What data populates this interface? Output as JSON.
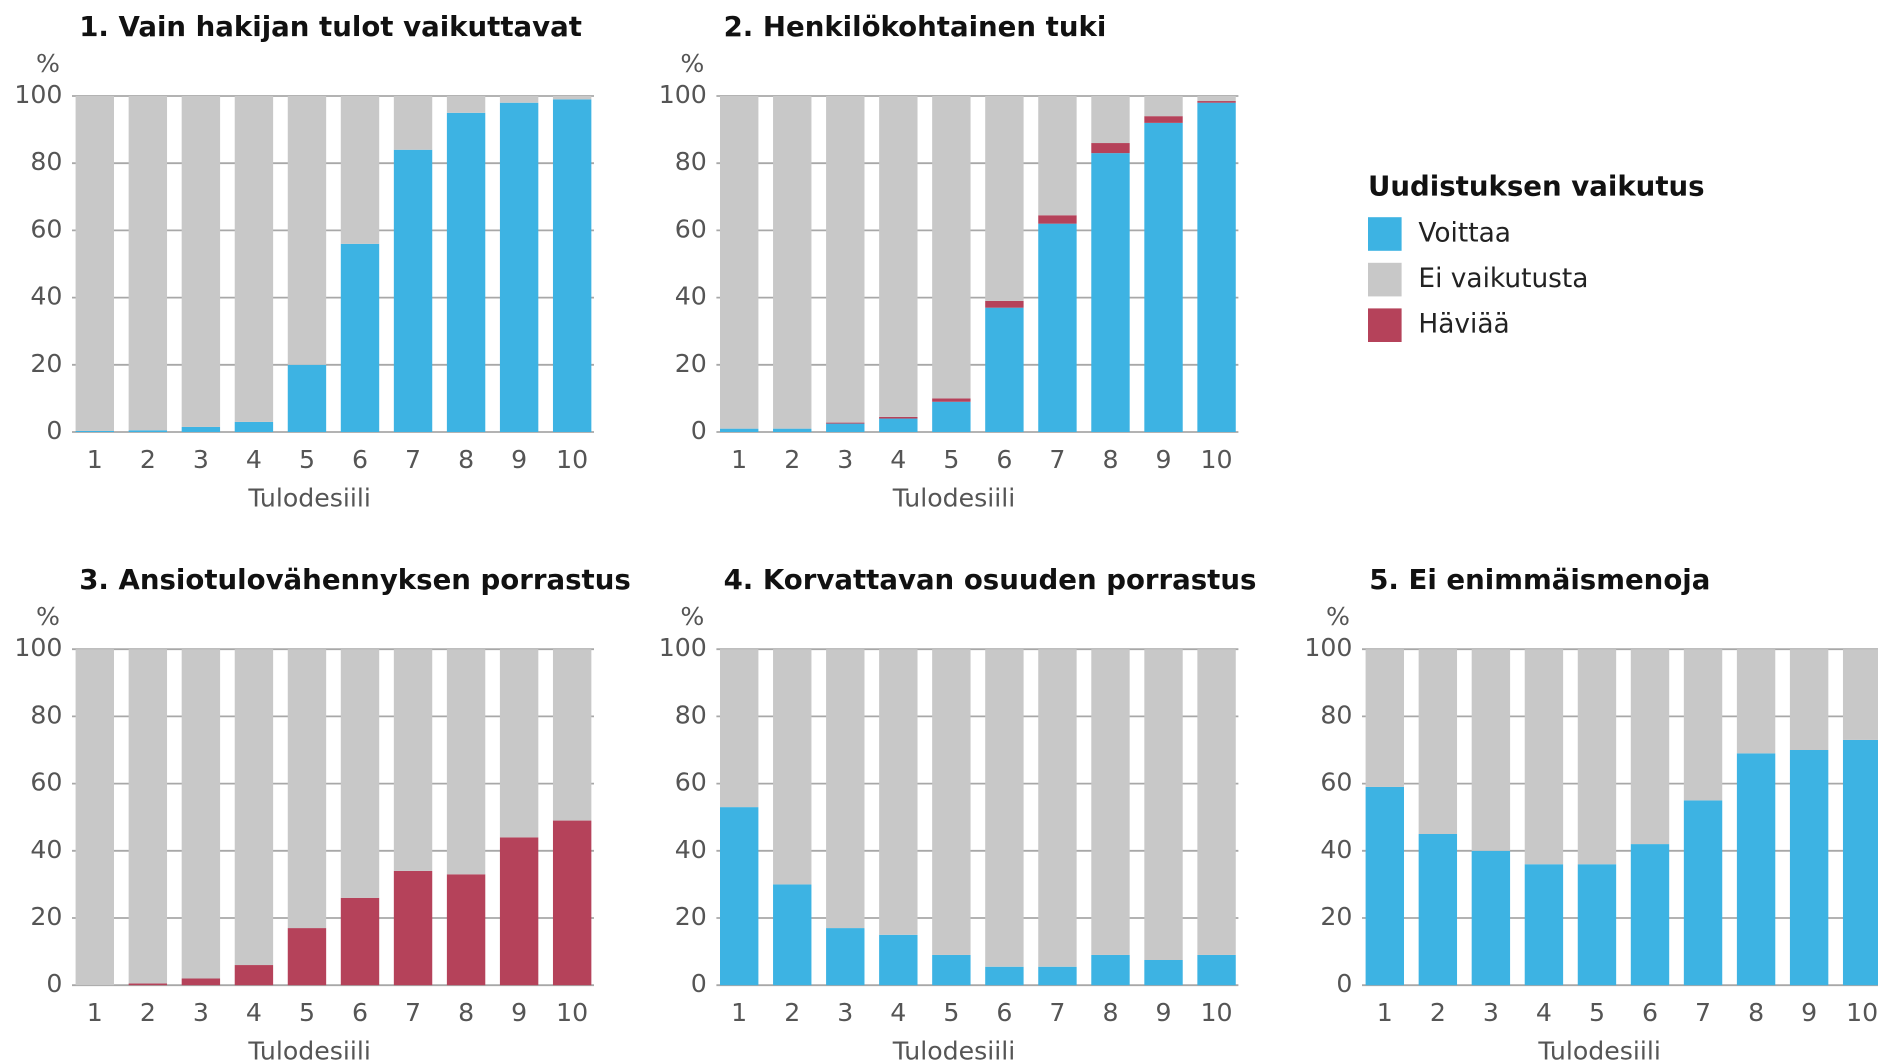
{
  "chart_data": [
    {
      "type": "stacked_bar",
      "title": "1. Vain hakijan tulot vaikuttavat",
      "y_unit": "%",
      "x_label": "Tulodesiili",
      "legend_title": "Uudistuksen vaikutus",
      "categories": [
        "1",
        "2",
        "3",
        "4",
        "5",
        "6",
        "7",
        "8",
        "9",
        "10"
      ],
      "series": [
        {
          "name": "Voittaa",
          "color": "#3db3e3",
          "values": [
            0.3,
            0.5,
            1.5,
            3,
            20,
            56,
            84,
            95,
            98,
            99
          ]
        },
        {
          "name": "Ei vaikutusta",
          "color": "#c8c8c8",
          "values": [
            99.7,
            99.5,
            98.5,
            97,
            80,
            44,
            16,
            5,
            2,
            1
          ]
        },
        {
          "name": "Häviää",
          "color": "#b5425a",
          "values": [
            0,
            0,
            0,
            0,
            0,
            0,
            0,
            0,
            0,
            0
          ]
        }
      ],
      "ylim": [
        0,
        100
      ],
      "yticks": [
        0,
        20,
        40,
        60,
        80,
        100
      ],
      "grid": true
    },
    {
      "type": "stacked_bar",
      "title": "2. Henkilökohtainen tuki",
      "y_unit": "%",
      "x_label": "Tulodesiili",
      "categories": [
        "1",
        "2",
        "3",
        "4",
        "5",
        "6",
        "7",
        "8",
        "9",
        "10"
      ],
      "series": [
        {
          "name": "Voittaa",
          "color": "#3db3e3",
          "values": [
            1,
            1,
            2.5,
            4,
            9,
            37,
            62,
            83,
            92,
            98
          ]
        },
        {
          "name": "Ei vaikutusta",
          "color": "#c8c8c8",
          "values": [
            99,
            99,
            97.2,
            95.5,
            90,
            61,
            35.5,
            14,
            6,
            1.5
          ]
        },
        {
          "name": "Häviää",
          "color": "#b5425a",
          "values": [
            0,
            0,
            0.3,
            0.5,
            1,
            2,
            2.5,
            3,
            2,
            0.5
          ]
        }
      ],
      "ylim": [
        0,
        100
      ],
      "yticks": [
        0,
        20,
        40,
        60,
        80,
        100
      ],
      "grid": true
    },
    {
      "type": "stacked_bar",
      "title": "3. Ansiotulovähennyksen porrastus",
      "y_unit": "%",
      "x_label": "Tulodesiili",
      "categories": [
        "1",
        "2",
        "3",
        "4",
        "5",
        "6",
        "7",
        "8",
        "9",
        "10"
      ],
      "series": [
        {
          "name": "Voittaa",
          "color": "#3db3e3",
          "values": [
            0,
            0,
            0,
            0,
            0,
            0,
            0,
            0,
            0,
            0
          ]
        },
        {
          "name": "Ei vaikutusta",
          "color": "#c8c8c8",
          "values": [
            100,
            99.5,
            98,
            94,
            83,
            74,
            66,
            67,
            56,
            51
          ]
        },
        {
          "name": "Häviää",
          "color": "#b5425a",
          "values": [
            0,
            0.5,
            2,
            6,
            17,
            26,
            34,
            33,
            44,
            49
          ]
        }
      ],
      "ylim": [
        0,
        100
      ],
      "yticks": [
        0,
        20,
        40,
        60,
        80,
        100
      ],
      "grid": true
    },
    {
      "type": "stacked_bar",
      "title": "4. Korvattavan osuuden porrastus",
      "y_unit": "%",
      "x_label": "Tulodesiili",
      "categories": [
        "1",
        "2",
        "3",
        "4",
        "5",
        "6",
        "7",
        "8",
        "9",
        "10"
      ],
      "series": [
        {
          "name": "Voittaa",
          "color": "#3db3e3",
          "values": [
            53,
            30,
            17,
            15,
            9,
            5.5,
            5.5,
            9,
            7.5,
            9
          ]
        },
        {
          "name": "Ei vaikutusta",
          "color": "#c8c8c8",
          "values": [
            47,
            70,
            83,
            85,
            91,
            94.5,
            94.5,
            91,
            92.5,
            91
          ]
        },
        {
          "name": "Häviää",
          "color": "#b5425a",
          "values": [
            0,
            0,
            0,
            0,
            0,
            0,
            0,
            0,
            0,
            0
          ]
        }
      ],
      "ylim": [
        0,
        100
      ],
      "yticks": [
        0,
        20,
        40,
        60,
        80,
        100
      ],
      "grid": true
    },
    {
      "type": "stacked_bar",
      "title": "5. Ei enimmäismenoja",
      "y_unit": "%",
      "x_label": "Tulodesiili",
      "categories": [
        "1",
        "2",
        "3",
        "4",
        "5",
        "6",
        "7",
        "8",
        "9",
        "10"
      ],
      "series": [
        {
          "name": "Voittaa",
          "color": "#3db3e3",
          "values": [
            59,
            45,
            40,
            36,
            36,
            42,
            55,
            69,
            70,
            73
          ]
        },
        {
          "name": "Ei vaikutusta",
          "color": "#c8c8c8",
          "values": [
            41,
            55,
            60,
            64,
            64,
            58,
            45,
            31,
            30,
            27
          ]
        },
        {
          "name": "Häviää",
          "color": "#b5425a",
          "values": [
            0,
            0,
            0,
            0,
            0,
            0,
            0,
            0,
            0,
            0
          ]
        }
      ],
      "ylim": [
        0,
        100
      ],
      "yticks": [
        0,
        20,
        40,
        60,
        80,
        100
      ],
      "grid": true
    }
  ]
}
